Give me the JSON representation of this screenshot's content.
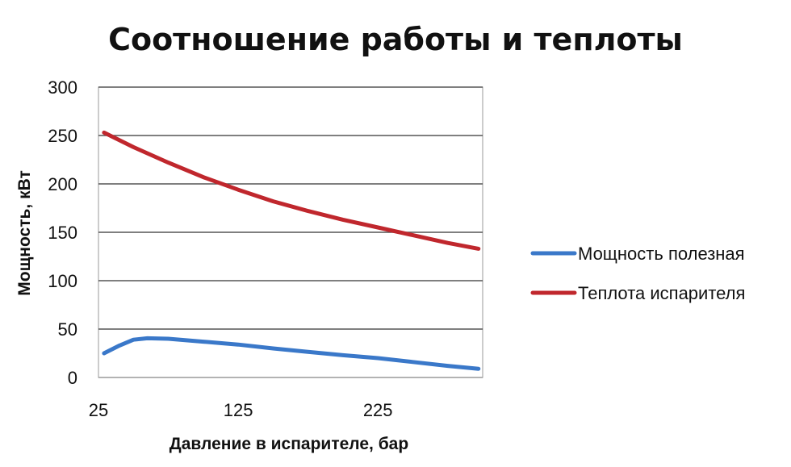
{
  "chart_data": {
    "type": "line",
    "title": "Соотношение работы и теплоты",
    "xlabel": "Давление в испарителе, бар",
    "ylabel": "Мощность, кВт",
    "xlim": [
      25,
      300
    ],
    "ylim": [
      0,
      300
    ],
    "x_ticks": [
      "25",
      "125",
      "225"
    ],
    "x_tick_values": [
      25,
      125,
      225
    ],
    "y_ticks": [
      "0",
      "50",
      "100",
      "150",
      "200",
      "250",
      "300"
    ],
    "y_tick_values": [
      0,
      50,
      100,
      150,
      200,
      250,
      300
    ],
    "grid": true,
    "legend_position": "right",
    "series": [
      {
        "name": "Мощность полезная",
        "color": "#3a78c9",
        "points": [
          [
            29,
            25
          ],
          [
            40,
            33
          ],
          [
            50,
            39
          ],
          [
            60,
            40.5
          ],
          [
            75,
            40
          ],
          [
            100,
            37
          ],
          [
            125,
            34
          ],
          [
            150,
            30
          ],
          [
            175,
            26.5
          ],
          [
            200,
            23
          ],
          [
            225,
            20
          ],
          [
            250,
            16
          ],
          [
            275,
            12
          ],
          [
            297,
            9
          ]
        ]
      },
      {
        "name": "Теплота испарителя",
        "color": "#c0272d",
        "points": [
          [
            29,
            253
          ],
          [
            50,
            238
          ],
          [
            75,
            222
          ],
          [
            100,
            207
          ],
          [
            125,
            194
          ],
          [
            150,
            182
          ],
          [
            175,
            172
          ],
          [
            200,
            163
          ],
          [
            225,
            155
          ],
          [
            250,
            147
          ],
          [
            275,
            139
          ],
          [
            297,
            133
          ]
        ]
      }
    ]
  }
}
